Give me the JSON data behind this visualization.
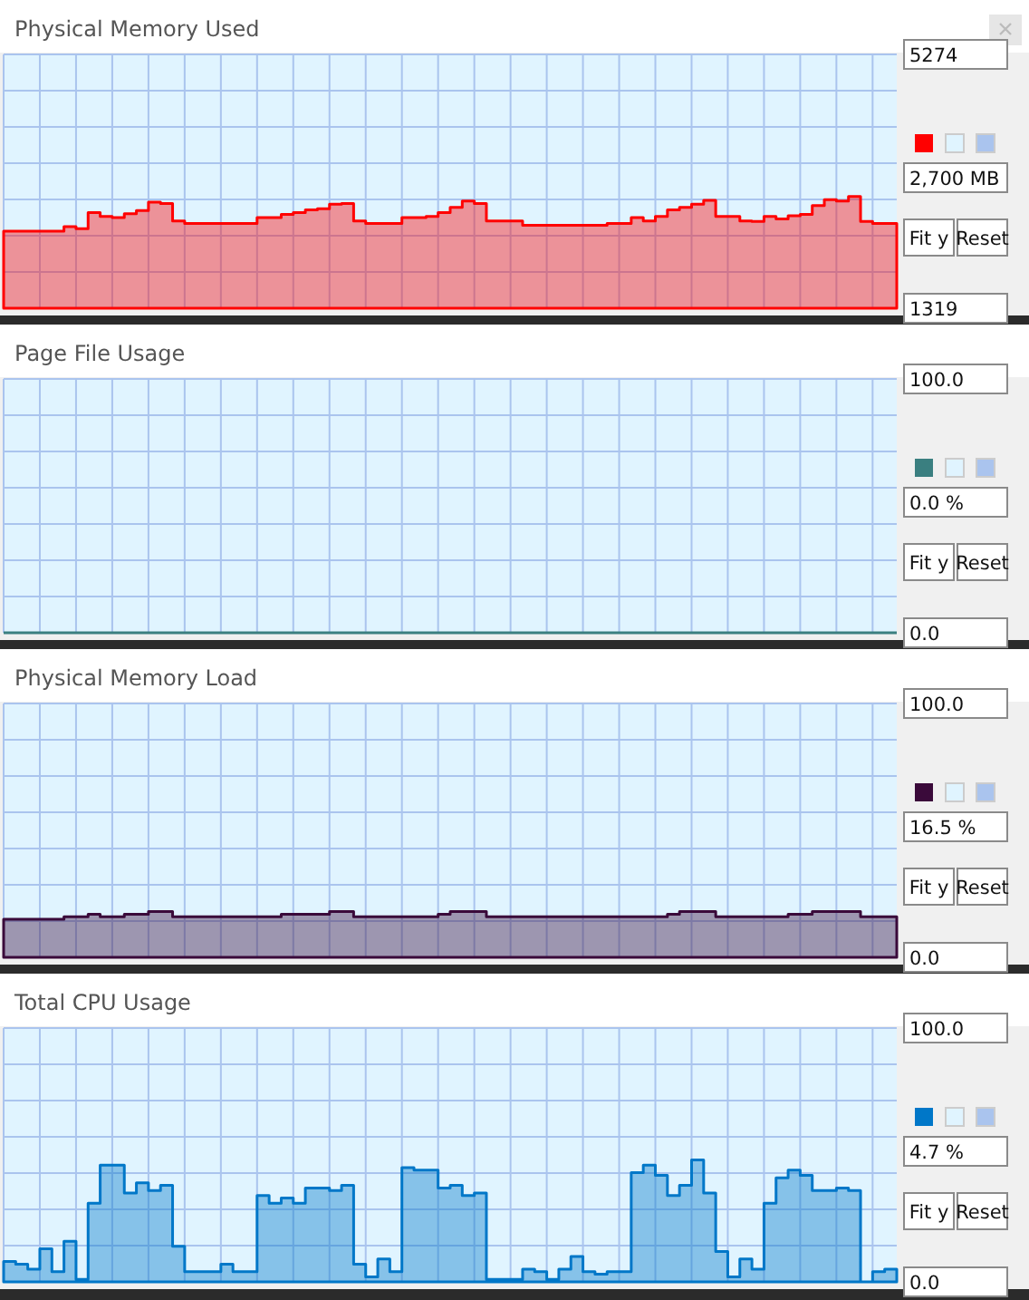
{
  "chart_data": [
    {
      "type": "area",
      "title": "Physical Memory Used",
      "categories": [
        null,
        null,
        null,
        null,
        null,
        null,
        null,
        null,
        null,
        null,
        null,
        null,
        null,
        null,
        null,
        null,
        null,
        null,
        null,
        null,
        null,
        null,
        null,
        null,
        null,
        null,
        null,
        null,
        null,
        null,
        null,
        null,
        null,
        null,
        null,
        null,
        null,
        null,
        null,
        null,
        null,
        null,
        null,
        null,
        null,
        null,
        null,
        null,
        null,
        null,
        null,
        null,
        null,
        null,
        null,
        null,
        null,
        null,
        null,
        null,
        null,
        null,
        null,
        null,
        null,
        null,
        null,
        null,
        null,
        null,
        null,
        null,
        null,
        null,
        null
      ],
      "series": [
        {
          "color": "#ff0000",
          "values": [
            2520,
            2520,
            2520,
            2520,
            2520,
            2590,
            2560,
            2810,
            2750,
            2730,
            2790,
            2840,
            2970,
            2950,
            2680,
            2640,
            2640,
            2640,
            2640,
            2640,
            2640,
            2730,
            2730,
            2780,
            2810,
            2850,
            2870,
            2940,
            2950,
            2680,
            2640,
            2640,
            2640,
            2730,
            2730,
            2750,
            2810,
            2890,
            2990,
            2950,
            2680,
            2680,
            2680,
            2610,
            2610,
            2610,
            2610,
            2610,
            2610,
            2610,
            2640,
            2640,
            2730,
            2680,
            2750,
            2850,
            2890,
            2940,
            3000,
            2750,
            2750,
            2680,
            2670,
            2750,
            2710,
            2760,
            2780,
            2920,
            3010,
            2990,
            3060,
            2670,
            2640,
            2640,
            2640
          ]
        }
      ],
      "ylim": [
        1319,
        5274
      ],
      "yticks": [
        1319,
        {
          "value": 1884,
          "label": null
        },
        {
          "value": 2449,
          "label": null
        },
        {
          "value": 3014,
          "label": null
        },
        {
          "value": 3579,
          "label": null
        },
        {
          "value": 4144,
          "label": null
        },
        {
          "value": 4709,
          "label": null
        },
        5274
      ],
      "grid": true,
      "tick_labels": "y",
      "annotations": [
        "2,700 MB",
        "Fit y",
        "Reset"
      ]
    },
    {
      "type": "line",
      "title": "Page File Usage",
      "categories": [
        null,
        null,
        null,
        null,
        null,
        null,
        null,
        null,
        null,
        null,
        null,
        null,
        null,
        null,
        null,
        null,
        null,
        null,
        null,
        null,
        null,
        null,
        null,
        null,
        null,
        null,
        null,
        null,
        null,
        null,
        null,
        null,
        null,
        null,
        null,
        null,
        null,
        null,
        null,
        null,
        null,
        null,
        null,
        null,
        null,
        null,
        null,
        null,
        null,
        null,
        null,
        null,
        null,
        null,
        null,
        null,
        null,
        null,
        null,
        null,
        null,
        null,
        null,
        null,
        null,
        null,
        null,
        null,
        null,
        null,
        null,
        null,
        null,
        null,
        null
      ],
      "series": [
        {
          "color": "#3a7f80",
          "values": [
            0,
            0,
            0,
            0,
            0,
            0,
            0,
            0,
            0,
            0,
            0,
            0,
            0,
            0,
            0,
            0,
            0,
            0,
            0,
            0,
            0,
            0,
            0,
            0,
            0,
            0,
            0,
            0,
            0,
            0,
            0,
            0,
            0,
            0,
            0,
            0,
            0,
            0,
            0,
            0,
            0,
            0,
            0,
            0,
            0,
            0,
            0,
            0,
            0,
            0,
            0,
            0,
            0,
            0,
            0,
            0,
            0,
            0,
            0,
            0,
            0,
            0,
            0,
            0,
            0,
            0,
            0,
            0,
            0,
            0,
            0,
            0,
            0,
            0,
            0
          ]
        }
      ],
      "ylim": [
        0,
        100
      ],
      "yticks": [
        {
          "value": 0,
          "label": "0.0"
        },
        {
          "value": 14.29,
          "label": null
        },
        {
          "value": 28.57,
          "label": null
        },
        {
          "value": 42.86,
          "label": null
        },
        {
          "value": 57.14,
          "label": null
        },
        {
          "value": 71.43,
          "label": null
        },
        {
          "value": 85.71,
          "label": null
        },
        {
          "value": 100,
          "label": "100.0"
        }
      ],
      "grid": true,
      "tick_labels": "y",
      "annotations": [
        "0.0 %",
        "Fit y",
        "Reset"
      ]
    },
    {
      "type": "area",
      "title": "Physical Memory Load",
      "categories": [
        null,
        null,
        null,
        null,
        null,
        null,
        null,
        null,
        null,
        null,
        null,
        null,
        null,
        null,
        null,
        null,
        null,
        null,
        null,
        null,
        null,
        null,
        null,
        null,
        null,
        null,
        null,
        null,
        null,
        null,
        null,
        null,
        null,
        null,
        null,
        null,
        null,
        null,
        null,
        null,
        null,
        null,
        null,
        null,
        null,
        null,
        null,
        null,
        null,
        null,
        null,
        null,
        null,
        null,
        null,
        null,
        null,
        null,
        null,
        null,
        null,
        null,
        null,
        null,
        null,
        null,
        null,
        null,
        null,
        null,
        null,
        null,
        null,
        null,
        null
      ],
      "series": [
        {
          "color": "#3a0a3a",
          "values": [
            15,
            15,
            15,
            15,
            15,
            16,
            16,
            17,
            16,
            16,
            17,
            17,
            18,
            18,
            16,
            16,
            16,
            16,
            16,
            16,
            16,
            16,
            16,
            17,
            17,
            17,
            17,
            18,
            18,
            16,
            16,
            16,
            16,
            16,
            16,
            16,
            17,
            18,
            18,
            18,
            16,
            16,
            16,
            16,
            16,
            16,
            16,
            16,
            16,
            16,
            16,
            16,
            16,
            16,
            16,
            17,
            18,
            18,
            18,
            16,
            16,
            16,
            16,
            16,
            16,
            17,
            17,
            18,
            18,
            18,
            18,
            16,
            16,
            16,
            16
          ]
        }
      ],
      "ylim": [
        0,
        100
      ],
      "yticks": [
        {
          "value": 0,
          "label": "0.0"
        },
        {
          "value": 14.29,
          "label": null
        },
        {
          "value": 28.57,
          "label": null
        },
        {
          "value": 42.86,
          "label": null
        },
        {
          "value": 57.14,
          "label": null
        },
        {
          "value": 71.43,
          "label": null
        },
        {
          "value": 85.71,
          "label": null
        },
        {
          "value": 100,
          "label": "100.0"
        }
      ],
      "grid": true,
      "tick_labels": "y",
      "annotations": [
        "16.5 %",
        "Fit y",
        "Reset"
      ]
    },
    {
      "type": "area",
      "title": "Total CPU Usage",
      "categories": [
        null,
        null,
        null,
        null,
        null,
        null,
        null,
        null,
        null,
        null,
        null,
        null,
        null,
        null,
        null,
        null,
        null,
        null,
        null,
        null,
        null,
        null,
        null,
        null,
        null,
        null,
        null,
        null,
        null,
        null,
        null,
        null,
        null,
        null,
        null,
        null,
        null,
        null,
        null,
        null,
        null,
        null,
        null,
        null,
        null,
        null,
        null,
        null,
        null,
        null,
        null,
        null,
        null,
        null,
        null,
        null,
        null,
        null,
        null,
        null,
        null,
        null,
        null,
        null,
        null,
        null,
        null,
        null,
        null,
        null,
        null,
        null,
        null,
        null,
        null
      ],
      "series": [
        {
          "color": "#0077c8",
          "values": [
            8,
            7,
            5,
            13,
            4,
            16,
            1,
            31,
            46,
            46,
            35,
            39,
            36,
            38,
            14,
            4,
            4,
            4,
            7,
            4,
            4,
            34,
            31,
            33,
            31,
            37,
            37,
            36,
            38,
            7,
            2,
            9,
            4,
            45,
            44,
            44,
            37,
            38,
            34,
            35,
            1,
            1,
            1,
            5,
            4,
            1,
            5,
            10,
            4,
            3,
            4,
            4,
            43,
            46,
            42,
            34,
            38,
            48,
            35,
            12,
            2,
            9,
            5,
            31,
            41,
            44,
            42,
            36,
            36,
            37,
            36,
            0,
            4,
            5,
            5
          ]
        }
      ],
      "ylim": [
        0,
        100
      ],
      "yticks": [
        {
          "value": 0,
          "label": "0.0"
        },
        {
          "value": 14.29,
          "label": null
        },
        {
          "value": 28.57,
          "label": null
        },
        {
          "value": 42.86,
          "label": null
        },
        {
          "value": 57.14,
          "label": null
        },
        {
          "value": 71.43,
          "label": null
        },
        {
          "value": 85.71,
          "label": null
        },
        {
          "value": 100,
          "label": "100.0"
        }
      ],
      "grid": true,
      "tick_labels": "y",
      "annotations": [
        "4.7 %",
        "Fit y",
        "Reset"
      ]
    }
  ]
}
